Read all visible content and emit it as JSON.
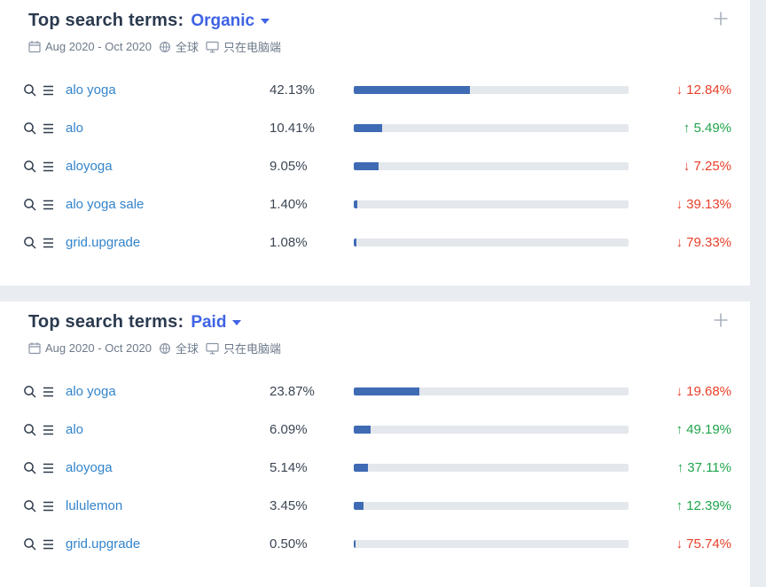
{
  "colors": {
    "bar_fill": "#3e6bb4",
    "bar_track": "#e4e7ec",
    "term_link": "#3384cb",
    "channel_blue": "#3f63e4",
    "change_up": "#1fa44c",
    "change_down": "#e8402a"
  },
  "panels": [
    {
      "title": "Top search terms:",
      "channel": "Organic",
      "date_range": "Aug 2020 - Oct 2020",
      "region": "全球",
      "device": "只在电脑端",
      "rows": [
        {
          "term": "alo yoga",
          "share": "42.13%",
          "share_value": 42.13,
          "change": "↓ 12.84%",
          "trend": "down"
        },
        {
          "term": "alo",
          "share": "10.41%",
          "share_value": 10.41,
          "change": "↑ 5.49%",
          "trend": "up"
        },
        {
          "term": "aloyoga",
          "share": "9.05%",
          "share_value": 9.05,
          "change": "↓ 7.25%",
          "trend": "down"
        },
        {
          "term": "alo yoga sale",
          "share": "1.40%",
          "share_value": 1.4,
          "change": "↓ 39.13%",
          "trend": "down"
        },
        {
          "term": "grid.upgrade",
          "share": "1.08%",
          "share_value": 1.08,
          "change": "↓ 79.33%",
          "trend": "down"
        }
      ]
    },
    {
      "title": "Top search terms:",
      "channel": "Paid",
      "date_range": "Aug 2020 - Oct 2020",
      "region": "全球",
      "device": "只在电脑端",
      "rows": [
        {
          "term": "alo yoga",
          "share": "23.87%",
          "share_value": 23.87,
          "change": "↓ 19.68%",
          "trend": "down"
        },
        {
          "term": "alo",
          "share": "6.09%",
          "share_value": 6.09,
          "change": "↑ 49.19%",
          "trend": "up"
        },
        {
          "term": "aloyoga",
          "share": "5.14%",
          "share_value": 5.14,
          "change": "↑ 37.11%",
          "trend": "up"
        },
        {
          "term": "lululemon",
          "share": "3.45%",
          "share_value": 3.45,
          "change": "↑ 12.39%",
          "trend": "up"
        },
        {
          "term": "grid.upgrade",
          "share": "0.50%",
          "share_value": 0.5,
          "change": "↓ 75.74%",
          "trend": "down"
        }
      ]
    }
  ]
}
